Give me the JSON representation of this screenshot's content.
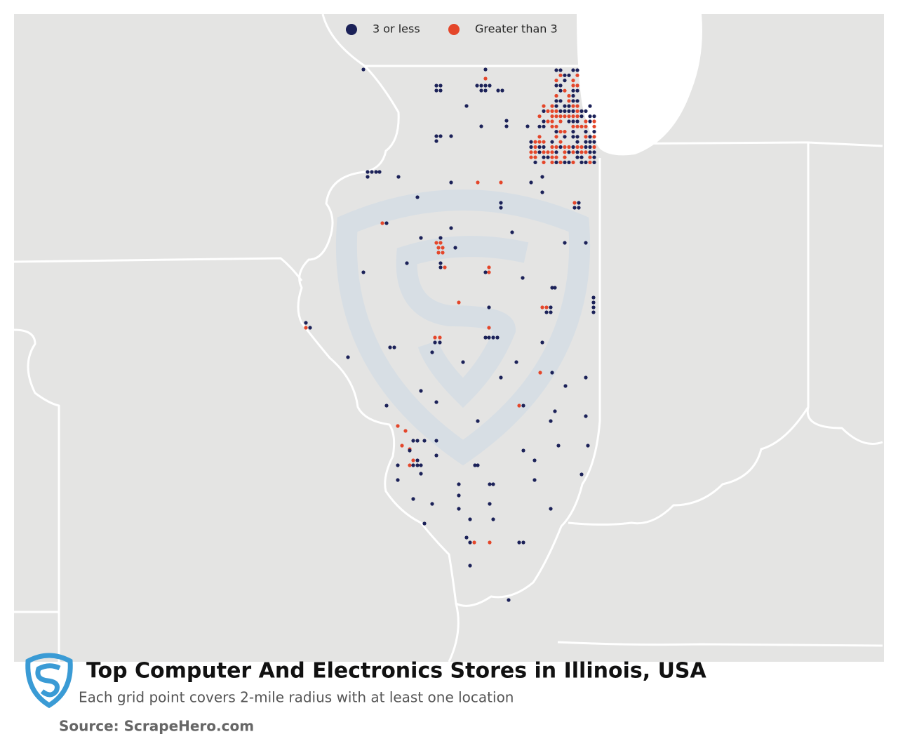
{
  "legend": {
    "items": [
      {
        "label": "3 or less",
        "color": "#1b2158"
      },
      {
        "label": "Greater than 3",
        "color": "#e4462a"
      }
    ]
  },
  "title": "Top Computer And Electronics Stores in Illinois, USA",
  "subtitle": "Each grid point covers 2-mile radius with at least one location",
  "source": "Source: ScrapeHero.com"
}
